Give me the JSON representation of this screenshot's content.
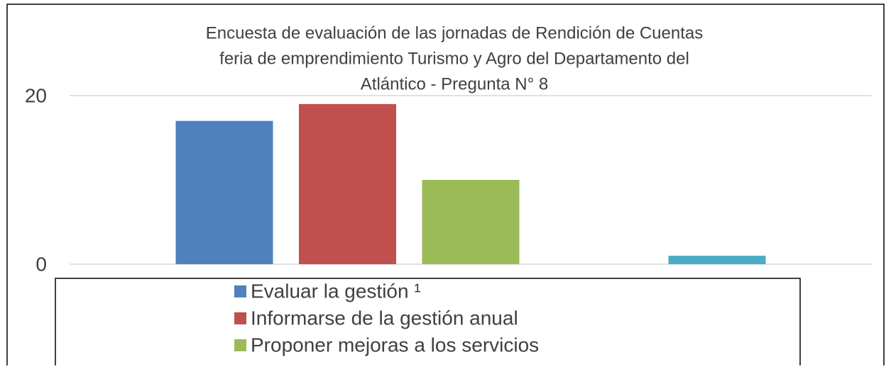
{
  "chart_data": {
    "type": "bar",
    "title": [
      "Encuesta de evaluación de las jornadas de Rendición de Cuentas",
      "feria de emprendimiento Turismo y Agro del Departamento del",
      "Atlántico - Pregunta N° 8"
    ],
    "series": [
      {
        "name": "Evaluar la gestión ¹",
        "color": "#4f81bd",
        "values": [
          17
        ]
      },
      {
        "name": "Informarse de la gestión anual",
        "color": "#c0504d",
        "values": [
          19
        ]
      },
      {
        "name": "Proponer mejoras a los servicios",
        "color": "#9bbb59",
        "values": [
          10
        ]
      },
      {
        "color": "#8064a2",
        "values": [
          0
        ]
      },
      {
        "color": "#4bacc6",
        "values": [
          1
        ]
      }
    ],
    "ylim": [
      0,
      20
    ],
    "yticks": [
      0,
      20
    ],
    "grid": true
  }
}
